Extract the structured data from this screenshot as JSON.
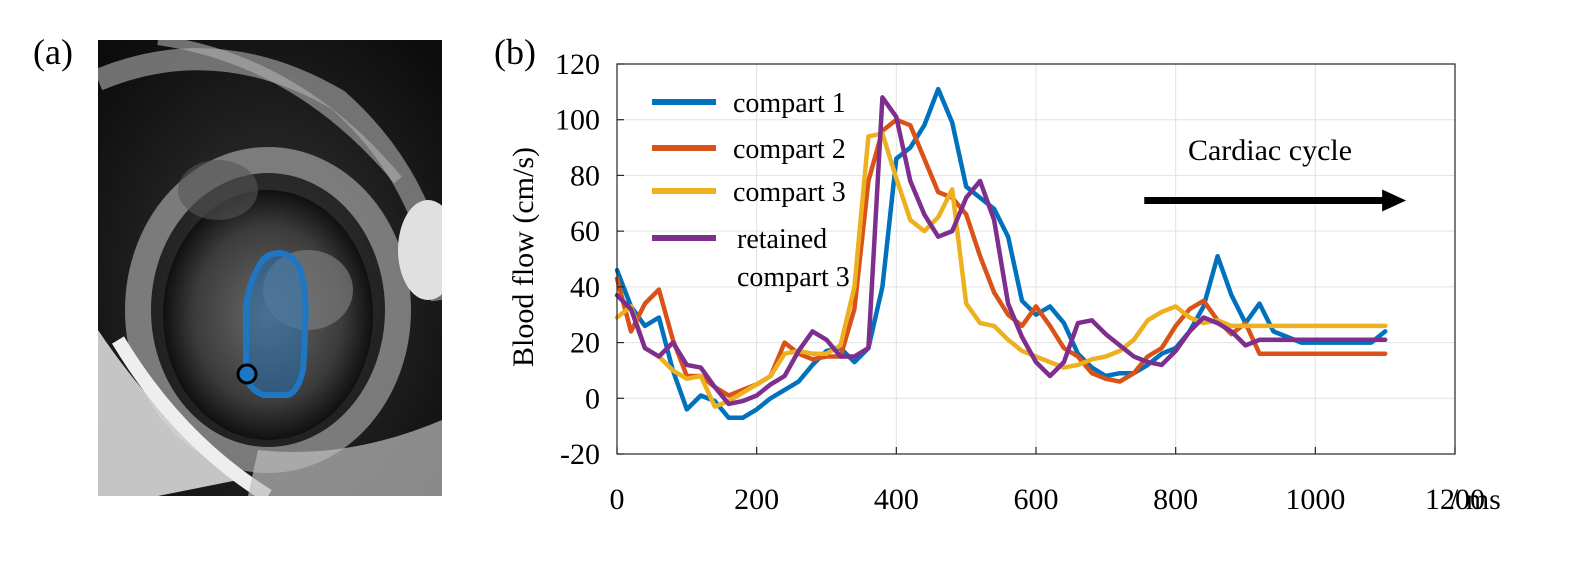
{
  "panels": {
    "a_label": "(a)",
    "b_label": "(b)"
  },
  "image_panel": {
    "description_icon": "mri-heart-slice-image",
    "roi_color": "#1f77c4",
    "marker_color": "#1f77c4"
  },
  "chart_data": {
    "type": "line",
    "title": "",
    "xlabel": "",
    "x_unit_label": "/ ms",
    "ylabel": "Blood flow (cm/s)",
    "xlim": [
      0,
      1200
    ],
    "ylim": [
      -20,
      120
    ],
    "xticks": [
      0,
      200,
      400,
      600,
      800,
      1000,
      1200
    ],
    "yticks": [
      -20,
      0,
      20,
      40,
      60,
      80,
      100,
      120
    ],
    "grid": true,
    "legend_position": "top-left",
    "annotation": {
      "text": "Cardiac cycle",
      "arrow_from_x": 755,
      "arrow_to_x": 1130,
      "arrow_y": 71
    },
    "series": [
      {
        "name": "compart 1",
        "color": "#0072bd",
        "x": [
          0,
          20,
          40,
          60,
          80,
          100,
          120,
          140,
          160,
          180,
          200,
          220,
          240,
          260,
          280,
          300,
          320,
          340,
          360,
          380,
          400,
          420,
          440,
          460,
          480,
          500,
          520,
          540,
          560,
          580,
          600,
          620,
          640,
          660,
          680,
          700,
          720,
          740,
          760,
          780,
          800,
          820,
          840,
          860,
          880,
          900,
          920,
          940,
          960,
          980,
          1000,
          1020,
          1040,
          1060,
          1080,
          1100
        ],
        "y": [
          46,
          33,
          26,
          29,
          10,
          -4,
          1,
          -1,
          -7,
          -7,
          -4,
          0,
          3,
          6,
          12,
          17,
          18,
          13,
          18,
          40,
          86,
          90,
          98,
          111,
          99,
          76,
          72,
          68,
          58,
          35,
          30,
          33,
          27,
          16,
          11,
          8,
          9,
          9,
          12,
          16,
          18,
          24,
          33,
          51,
          37,
          27,
          34,
          24,
          22,
          20,
          20,
          20,
          20,
          20,
          20,
          24
        ]
      },
      {
        "name": "compart 2",
        "color": "#d95319",
        "x": [
          0,
          20,
          40,
          60,
          80,
          100,
          120,
          140,
          160,
          180,
          200,
          220,
          240,
          260,
          280,
          300,
          320,
          340,
          360,
          380,
          400,
          420,
          440,
          460,
          480,
          500,
          520,
          540,
          560,
          580,
          600,
          620,
          640,
          660,
          680,
          700,
          720,
          740,
          760,
          780,
          800,
          820,
          840,
          860,
          880,
          900,
          920,
          940,
          960,
          980,
          1000,
          1020,
          1040,
          1060,
          1080,
          1100
        ],
        "y": [
          43,
          24,
          34,
          39,
          21,
          8,
          8,
          4,
          1,
          3,
          5,
          8,
          20,
          16,
          14,
          15,
          15,
          32,
          78,
          96,
          100,
          98,
          86,
          74,
          72,
          66,
          51,
          38,
          30,
          26,
          33,
          26,
          18,
          15,
          9,
          7,
          6,
          9,
          15,
          18,
          26,
          32,
          35,
          28,
          23,
          27,
          16,
          16,
          16,
          16,
          16,
          16,
          16,
          16,
          16,
          16
        ]
      },
      {
        "name": "compart 3",
        "color": "#edb120",
        "x": [
          0,
          20,
          40,
          60,
          80,
          100,
          120,
          140,
          160,
          180,
          200,
          220,
          240,
          260,
          280,
          300,
          320,
          340,
          360,
          380,
          400,
          420,
          440,
          460,
          480,
          500,
          520,
          540,
          560,
          580,
          600,
          620,
          640,
          660,
          680,
          700,
          720,
          740,
          760,
          780,
          800,
          820,
          840,
          860,
          880,
          900,
          920,
          940,
          960,
          980,
          1000,
          1020,
          1040,
          1060,
          1080,
          1100
        ],
        "y": [
          29,
          33,
          18,
          15,
          10,
          7,
          8,
          -3,
          -1,
          2,
          5,
          8,
          16,
          17,
          16,
          16,
          19,
          40,
          94,
          95,
          79,
          64,
          60,
          65,
          75,
          34,
          27,
          26,
          21,
          17,
          15,
          13,
          11,
          12,
          14,
          15,
          17,
          21,
          28,
          31,
          33,
          29,
          27,
          28,
          26,
          26,
          26,
          26,
          26,
          26,
          26,
          26,
          26,
          26,
          26,
          26
        ]
      },
      {
        "name": "retained compart 3",
        "legend_line1": "retained",
        "legend_line2": "compart 3",
        "color": "#7e2f8e",
        "x": [
          0,
          20,
          40,
          60,
          80,
          100,
          120,
          140,
          160,
          180,
          200,
          220,
          240,
          260,
          280,
          300,
          320,
          340,
          360,
          380,
          400,
          420,
          440,
          460,
          480,
          500,
          520,
          540,
          560,
          580,
          600,
          620,
          640,
          660,
          680,
          700,
          720,
          740,
          760,
          780,
          800,
          820,
          840,
          860,
          880,
          900,
          920,
          940,
          960,
          980,
          1000,
          1020,
          1040,
          1060,
          1080,
          1100
        ],
        "y": [
          37,
          32,
          18,
          15,
          20,
          12,
          11,
          4,
          -2,
          -1,
          1,
          5,
          8,
          17,
          24,
          21,
          15,
          15,
          18,
          108,
          101,
          78,
          66,
          58,
          60,
          72,
          78,
          64,
          34,
          22,
          13,
          8,
          13,
          27,
          28,
          23,
          19,
          15,
          13,
          12,
          17,
          24,
          29,
          27,
          24,
          19,
          21,
          21,
          21,
          21,
          21,
          21,
          21,
          21,
          21,
          21
        ]
      }
    ]
  }
}
